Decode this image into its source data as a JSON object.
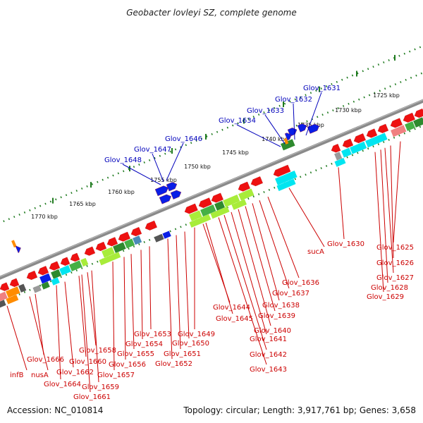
{
  "title": "Geobacter lovleyi SZ, complete genome",
  "accession": "Accession: NC_010814",
  "summary": "Topology: circular; Length: 3,917,761 bp; Genes: 3,658",
  "kbp_labels": [
    "1725 kbp",
    "1730 kbp",
    "1735 kbp",
    "1740 kbp",
    "1745 kbp",
    "1750 kbp",
    "1755 kbp",
    "1760 kbp",
    "1765 kbp",
    "1770 kbp"
  ],
  "blue_genes": [
    "Glov_1631",
    "Glov_1632",
    "Glov_1633",
    "Glov_1634",
    "Glov_1646",
    "Glov_1647",
    "Glov_1648"
  ],
  "red_genes": [
    "Glov_1625",
    "Glov_1626",
    "Glov_1627",
    "Glov_1628",
    "Glov_1629",
    "Glov_1630",
    "sucA",
    "Glov_1636",
    "Glov_1637",
    "Glov_1638",
    "Glov_1639",
    "Glov_1640",
    "Glov_1641",
    "Glov_1642",
    "Glov_1643",
    "Glov_1644",
    "Glov_1645",
    "Glov_1649",
    "Glov_1650",
    "Glov_1651",
    "Glov_1652",
    "Glov_1653",
    "Glov_1654",
    "Glov_1655",
    "Glov_1656",
    "Glov_1657",
    "Glov_1658",
    "Glov_1659",
    "Glov_1660",
    "Glov_1661",
    "Glov_1662",
    "Glov_1664",
    "Glov_1666",
    "nusA",
    "infB"
  ],
  "colors": {
    "backbone": "#8a8a8a",
    "tick": "#1e7a1e",
    "gene_label": "#cc0000",
    "forward_label": "#0000bb",
    "cds_red": "#ee1111",
    "cds_blue": "#0a1ee6",
    "cyan": "#00e5f0",
    "lime": "#a8ec3a",
    "darkgreen": "#2e8a2e",
    "midgreen": "#45b045",
    "gray": "#9a9a9a",
    "darkgray": "#555555",
    "salmon": "#f08080",
    "orange": "#ff8c00",
    "steel": "#4a8ab8"
  }
}
